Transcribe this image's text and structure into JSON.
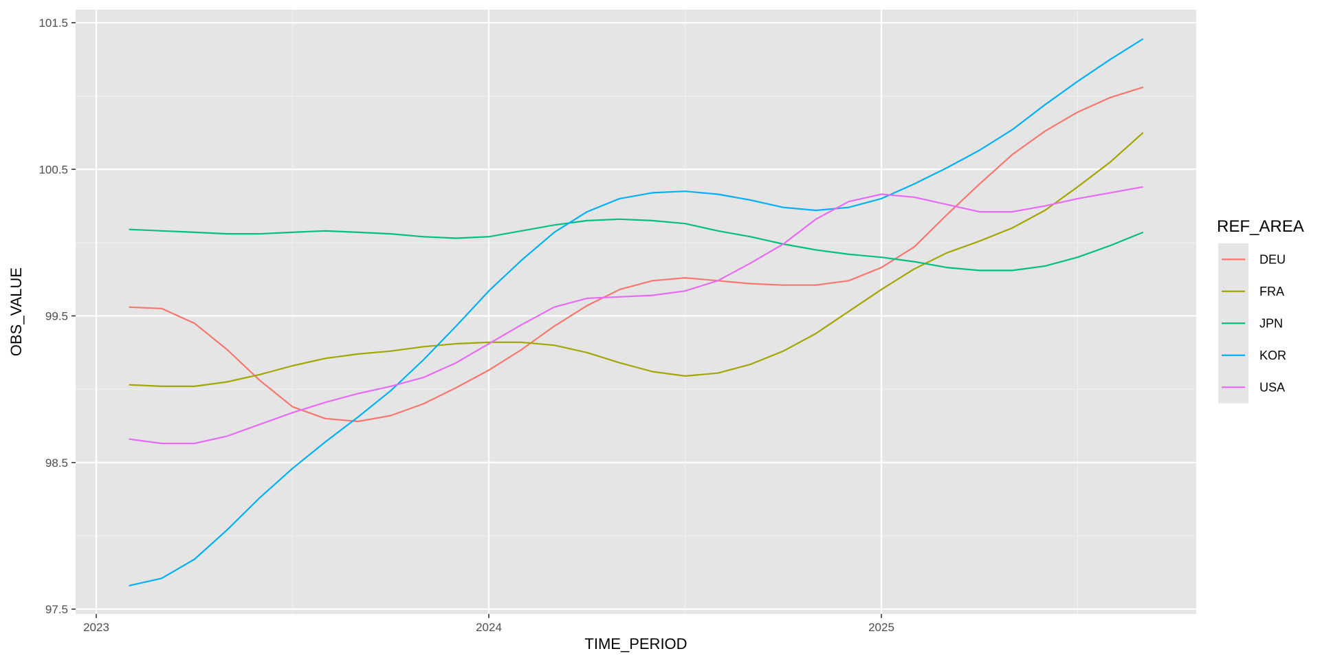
{
  "chart_data": {
    "type": "line",
    "title": "",
    "xlabel": "TIME_PERIOD",
    "ylabel": "OBS_VALUE",
    "x_ticks": [
      "2023",
      "2024",
      "2025"
    ],
    "y_ticks": [
      "97.5",
      "98.5",
      "99.5",
      "100.5",
      "101.5"
    ],
    "ylim": [
      97.5,
      101.5
    ],
    "xlim": [
      "2023-01",
      "2025-09"
    ],
    "grid": true,
    "legend_title": "REF_AREA",
    "legend_position": "right",
    "x": [
      "2023-02",
      "2023-03",
      "2023-04",
      "2023-05",
      "2023-06",
      "2023-07",
      "2023-08",
      "2023-09",
      "2023-10",
      "2023-11",
      "2023-12",
      "2024-01",
      "2024-02",
      "2024-03",
      "2024-04",
      "2024-05",
      "2024-06",
      "2024-07",
      "2024-08",
      "2024-09",
      "2024-10",
      "2024-11",
      "2024-12",
      "2025-01",
      "2025-02",
      "2025-03",
      "2025-04",
      "2025-05",
      "2025-06",
      "2025-07",
      "2025-08",
      "2025-09"
    ],
    "series": [
      {
        "name": "DEU",
        "color": "#F8766D",
        "values": [
          99.56,
          99.55,
          99.45,
          99.27,
          99.06,
          98.88,
          98.8,
          98.78,
          98.82,
          98.9,
          99.01,
          99.13,
          99.27,
          99.43,
          99.57,
          99.68,
          99.74,
          99.76,
          99.74,
          99.72,
          99.71,
          99.71,
          99.74,
          99.83,
          99.97,
          100.19,
          100.4,
          100.6,
          100.76,
          100.89,
          100.99,
          101.06
        ]
      },
      {
        "name": "FRA",
        "color": "#A3A500",
        "values": [
          99.03,
          99.02,
          99.02,
          99.05,
          99.1,
          99.16,
          99.21,
          99.24,
          99.26,
          99.29,
          99.31,
          99.32,
          99.32,
          99.3,
          99.25,
          99.18,
          99.12,
          99.09,
          99.11,
          99.17,
          99.26,
          99.38,
          99.53,
          99.68,
          99.82,
          99.93,
          100.01,
          100.1,
          100.22,
          100.38,
          100.55,
          100.75
        ]
      },
      {
        "name": "JPN",
        "color": "#00BF7D",
        "values": [
          100.09,
          100.08,
          100.07,
          100.06,
          100.06,
          100.07,
          100.08,
          100.07,
          100.06,
          100.04,
          100.03,
          100.04,
          100.08,
          100.12,
          100.15,
          100.16,
          100.15,
          100.13,
          100.08,
          100.04,
          99.99,
          99.95,
          99.92,
          99.9,
          99.87,
          99.83,
          99.81,
          99.81,
          99.84,
          99.9,
          99.98,
          100.07
        ]
      },
      {
        "name": "KOR",
        "color": "#00B0F6",
        "values": [
          97.66,
          97.71,
          97.84,
          98.04,
          98.26,
          98.46,
          98.64,
          98.81,
          98.99,
          99.2,
          99.43,
          99.67,
          99.88,
          100.07,
          100.21,
          100.3,
          100.34,
          100.35,
          100.33,
          100.29,
          100.24,
          100.22,
          100.24,
          100.3,
          100.4,
          100.51,
          100.63,
          100.77,
          100.94,
          101.1,
          101.25,
          101.39
        ]
      },
      {
        "name": "USA",
        "color": "#E76BF3",
        "values": [
          98.66,
          98.63,
          98.63,
          98.68,
          98.76,
          98.84,
          98.91,
          98.97,
          99.02,
          99.08,
          99.18,
          99.31,
          99.44,
          99.56,
          99.62,
          99.63,
          99.64,
          99.67,
          99.74,
          99.86,
          99.99,
          100.16,
          100.28,
          100.33,
          100.31,
          100.26,
          100.21,
          100.21,
          100.25,
          100.3,
          100.34,
          100.38
        ]
      }
    ]
  }
}
